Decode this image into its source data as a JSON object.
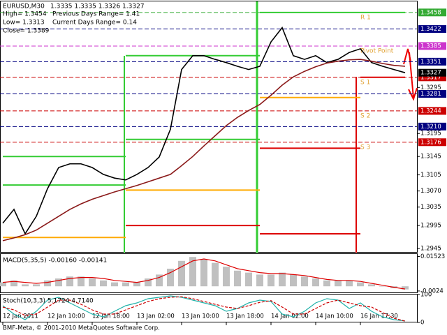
{
  "chart_data": [
    {
      "type": "line",
      "title": "EURUSD,M30",
      "ohlc": "1.3335 1.3335 1.3326 1.3327",
      "info": [
        "High= 1.3454",
        "Previous Days Range= 1.41",
        "Low= 1.3313",
        "Current Days Range= 0.14",
        "Close= 1.3389"
      ],
      "categories": [
        "12 Jan 2011",
        null,
        null,
        null,
        "12 Jan 10:00",
        null,
        null,
        null,
        "12 Jan 18:00",
        null,
        null,
        null,
        "13 Jan 02:00",
        null,
        null,
        null,
        "13 Jan 10:00",
        null,
        null,
        null,
        "13 Jan 18:00",
        null,
        null,
        null,
        "14 Jan 02:00",
        null,
        null,
        null,
        "14 Jan 10:00",
        null,
        null,
        null,
        "16 Jan 17:30",
        null,
        null,
        null,
        null
      ],
      "series": [
        {
          "color": "#000000",
          "values": [
            1.3,
            1.303,
            1.2977,
            1.3015,
            1.3075,
            1.3121,
            1.3129,
            1.3129,
            1.3121,
            1.3106,
            1.3098,
            1.3094,
            1.3106,
            1.3121,
            1.3144,
            1.3204,
            1.3334,
            1.3364,
            1.3364,
            1.3356,
            1.3349,
            1.3341,
            1.3334,
            1.3341,
            1.3394,
            1.3425,
            1.3364,
            1.3356,
            1.3364,
            1.3349,
            1.3356,
            1.3371,
            1.3379,
            1.3349,
            1.3341,
            1.3334,
            1.3327
          ]
        },
        {
          "color": "#8b1a1a",
          "values": [
            1.2962,
            1.2968,
            1.2975,
            1.2985,
            1.3,
            1.3015,
            1.303,
            1.3042,
            1.3052,
            1.306,
            1.3068,
            1.3075,
            1.3082,
            1.309,
            1.3098,
            1.3106,
            1.3125,
            1.3145,
            1.3168,
            1.319,
            1.3212,
            1.323,
            1.3245,
            1.3258,
            1.3278,
            1.33,
            1.3318,
            1.333,
            1.334,
            1.3348,
            1.3352,
            1.3355,
            1.3356,
            1.3352,
            1.3347,
            1.3343,
            1.3341
          ]
        }
      ],
      "ylim": [
        1.2936,
        1.3482
      ],
      "yticks": [
        1.3295,
        1.3195,
        1.3145,
        1.3105,
        {
          "value": 1.307,
          "label": "1.3070"
        },
        1.3035,
        1.2995,
        1.2945
      ],
      "levels": [
        {
          "value": 1.3458,
          "color": "#33aa33"
        },
        {
          "value": 1.3422,
          "color": "#000080"
        },
        {
          "value": 1.3385,
          "color": "#cc33cc"
        },
        {
          "value": 1.3351,
          "color": "#000080"
        },
        {
          "value": 1.3317,
          "color": "#cc0000"
        },
        {
          "value": 1.3281,
          "color": "#000080"
        },
        {
          "value": 1.3244,
          "color": "#cc0000"
        },
        {
          "value": 1.321,
          "label": "1.3210",
          "color": "#000080"
        },
        {
          "value": 1.3176,
          "color": "#cc0000"
        }
      ],
      "pivots": [
        {
          "label": "R 1",
          "value": 1.3458
        },
        {
          "label": "Pivot Point",
          "value": 1.3385
        },
        {
          "label": "S 1",
          "value": 1.3317
        },
        {
          "label": "S 2",
          "value": 1.3244
        },
        {
          "label": "S 3",
          "value": 1.3176
        }
      ],
      "ranges": [
        {
          "color": "#33cc33",
          "from": 0,
          "to": 11,
          "value": 1.3145
        },
        {
          "color": "#33cc33",
          "from": 0,
          "to": 11,
          "value": 1.3083
        },
        {
          "color": "#33cc33",
          "from": 11,
          "to": 23,
          "value": 1.3364
        },
        {
          "color": "#33cc33",
          "from": 11,
          "to": 23,
          "value": 1.3182
        },
        {
          "color": "#33cc33",
          "from": 23,
          "to": 36,
          "value": 1.3458
        },
        {
          "color": "#ffaa00",
          "from": 0,
          "to": 11,
          "value": 1.2969
        },
        {
          "color": "#ffaa00",
          "from": 11,
          "to": 23,
          "value": 1.3072
        },
        {
          "color": "#ffaa00",
          "from": 23,
          "to": 32,
          "value": 1.3273
        },
        {
          "color": "#dd0000",
          "from": 11,
          "to": 23,
          "value": 1.2995
        },
        {
          "color": "#dd0000",
          "from": 23,
          "to": 32,
          "value": 1.3163
        },
        {
          "color": "#dd0000",
          "from": 23,
          "to": 32,
          "value": 1.2977
        },
        {
          "color": "#dd0000",
          "from": 32,
          "to": 36,
          "value": 1.3317
        }
      ]
    },
    {
      "type": "bar",
      "title": "MACD(5,35,5) -0.00160 -0.00141",
      "series": [
        {
          "style": "bar",
          "color": "#c0c0c0",
          "values": [
            0.002,
            0.003,
            0.001,
            0.001,
            0.003,
            0.004,
            0.005,
            0.005,
            0.004,
            0.003,
            0.002,
            0.002,
            0.002,
            0.004,
            0.006,
            0.009,
            0.013,
            0.015,
            0.014,
            0.012,
            0.01,
            0.008,
            0.007,
            0.006,
            0.006,
            0.007,
            0.006,
            0.005,
            0.004,
            0.003,
            0.003,
            0.003,
            0.002,
            0.001,
            0.0,
            -0.001,
            -0.0016
          ]
        },
        {
          "style": "line",
          "color": "#dd0000",
          "values": [
            0.002,
            0.0025,
            0.002,
            0.0015,
            0.002,
            0.003,
            0.004,
            0.0045,
            0.0045,
            0.004,
            0.003,
            0.0025,
            0.002,
            0.003,
            0.0045,
            0.007,
            0.01,
            0.013,
            0.014,
            0.013,
            0.011,
            0.009,
            0.008,
            0.007,
            0.0065,
            0.0065,
            0.006,
            0.0055,
            0.0045,
            0.0035,
            0.003,
            0.003,
            0.0025,
            0.0015,
            0.0005,
            -0.0005,
            -0.00141
          ]
        }
      ],
      "ylim": [
        -0.0035,
        0.0165
      ],
      "yticks": [
        0.01523,
        -0.0024
      ]
    },
    {
      "type": "line",
      "title": "Stoch(10,3,3) 5.1724 4.7140",
      "series": [
        {
          "style": "line",
          "color": "#20b2aa",
          "values": [
            60,
            30,
            10,
            40,
            80,
            90,
            70,
            50,
            30,
            20,
            40,
            60,
            70,
            85,
            90,
            95,
            90,
            80,
            70,
            60,
            40,
            50,
            70,
            80,
            75,
            30,
            20,
            40,
            70,
            85,
            80,
            50,
            70,
            40,
            20,
            10,
            5.1724
          ]
        },
        {
          "style": "dashed",
          "color": "#cc0000",
          "values": [
            55,
            45,
            25,
            30,
            55,
            80,
            80,
            65,
            45,
            30,
            30,
            45,
            60,
            75,
            85,
            90,
            92,
            85,
            75,
            65,
            55,
            50,
            60,
            72,
            78,
            55,
            30,
            30,
            50,
            70,
            80,
            70,
            60,
            55,
            35,
            15,
            4.714
          ]
        }
      ],
      "ylim": [
        0,
        100
      ],
      "yticks": [
        100,
        0
      ]
    }
  ],
  "footer": "BMF-Meta, © 2001-2010 MetaQuotes Software Corp."
}
